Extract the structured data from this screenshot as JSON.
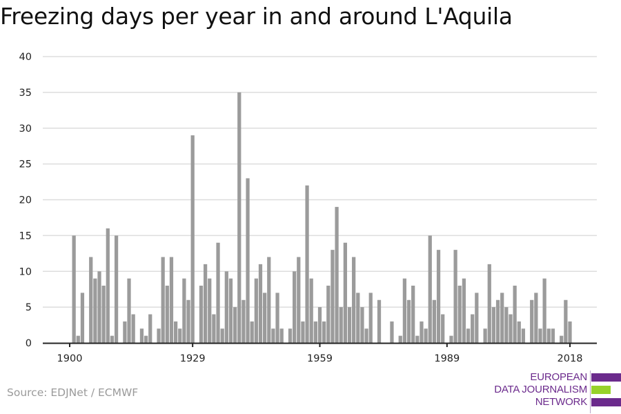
{
  "title": "Freezing days per year in and around L'Aquila",
  "source": "Source: EDJNet / ECMWF",
  "logo": {
    "lines": [
      "EUROPEAN",
      "DATA JOURNALISM",
      "NETWORK"
    ],
    "colors": {
      "purple": "#6b2a8c",
      "green": "#97d22a"
    }
  },
  "chart_data": {
    "type": "bar",
    "title": "Freezing days per year in and around L'Aquila",
    "xlabel": "",
    "ylabel": "",
    "ylim": [
      0,
      40
    ],
    "yticks": [
      0,
      5,
      10,
      15,
      20,
      25,
      30,
      35,
      40
    ],
    "xticks": [
      1900,
      1929,
      1959,
      1989,
      2018
    ],
    "xlim": [
      1900,
      2018
    ],
    "grid": true,
    "bar_color": "#9b9b9b",
    "x": [
      1900,
      1901,
      1902,
      1903,
      1904,
      1905,
      1906,
      1907,
      1908,
      1909,
      1910,
      1911,
      1912,
      1913,
      1914,
      1915,
      1916,
      1917,
      1918,
      1919,
      1920,
      1921,
      1922,
      1923,
      1924,
      1925,
      1926,
      1927,
      1928,
      1929,
      1930,
      1931,
      1932,
      1933,
      1934,
      1935,
      1936,
      1937,
      1938,
      1939,
      1940,
      1941,
      1942,
      1943,
      1944,
      1945,
      1946,
      1947,
      1948,
      1949,
      1950,
      1951,
      1952,
      1953,
      1954,
      1955,
      1956,
      1957,
      1958,
      1959,
      1960,
      1961,
      1962,
      1963,
      1964,
      1965,
      1966,
      1967,
      1968,
      1969,
      1970,
      1971,
      1972,
      1973,
      1974,
      1975,
      1976,
      1977,
      1978,
      1979,
      1980,
      1981,
      1982,
      1983,
      1984,
      1985,
      1986,
      1987,
      1988,
      1989,
      1990,
      1991,
      1992,
      1993,
      1994,
      1995,
      1996,
      1997,
      1998,
      1999,
      2000,
      2001,
      2002,
      2003,
      2004,
      2005,
      2006,
      2007,
      2008,
      2009,
      2010,
      2011,
      2012,
      2013,
      2014,
      2015,
      2016,
      2017,
      2018
    ],
    "values": [
      0,
      15,
      1,
      7,
      0,
      12,
      9,
      10,
      8,
      16,
      1,
      15,
      0,
      3,
      9,
      4,
      0,
      2,
      1,
      4,
      0,
      2,
      12,
      8,
      12,
      3,
      2,
      9,
      6,
      29,
      0,
      8,
      11,
      9,
      4,
      14,
      2,
      10,
      9,
      5,
      35,
      6,
      23,
      3,
      9,
      11,
      7,
      12,
      2,
      7,
      2,
      0,
      2,
      10,
      12,
      3,
      22,
      9,
      3,
      5,
      3,
      8,
      13,
      19,
      5,
      14,
      5,
      12,
      7,
      5,
      2,
      7,
      0,
      6,
      0,
      0,
      3,
      0,
      1,
      9,
      6,
      8,
      1,
      3,
      2,
      15,
      6,
      13,
      4,
      0,
      1,
      13,
      8,
      9,
      2,
      4,
      7,
      0,
      2,
      11,
      5,
      6,
      7,
      5,
      4,
      8,
      3,
      2,
      0,
      6,
      7,
      2,
      9,
      2,
      2,
      0,
      1,
      6,
      3
    ]
  }
}
